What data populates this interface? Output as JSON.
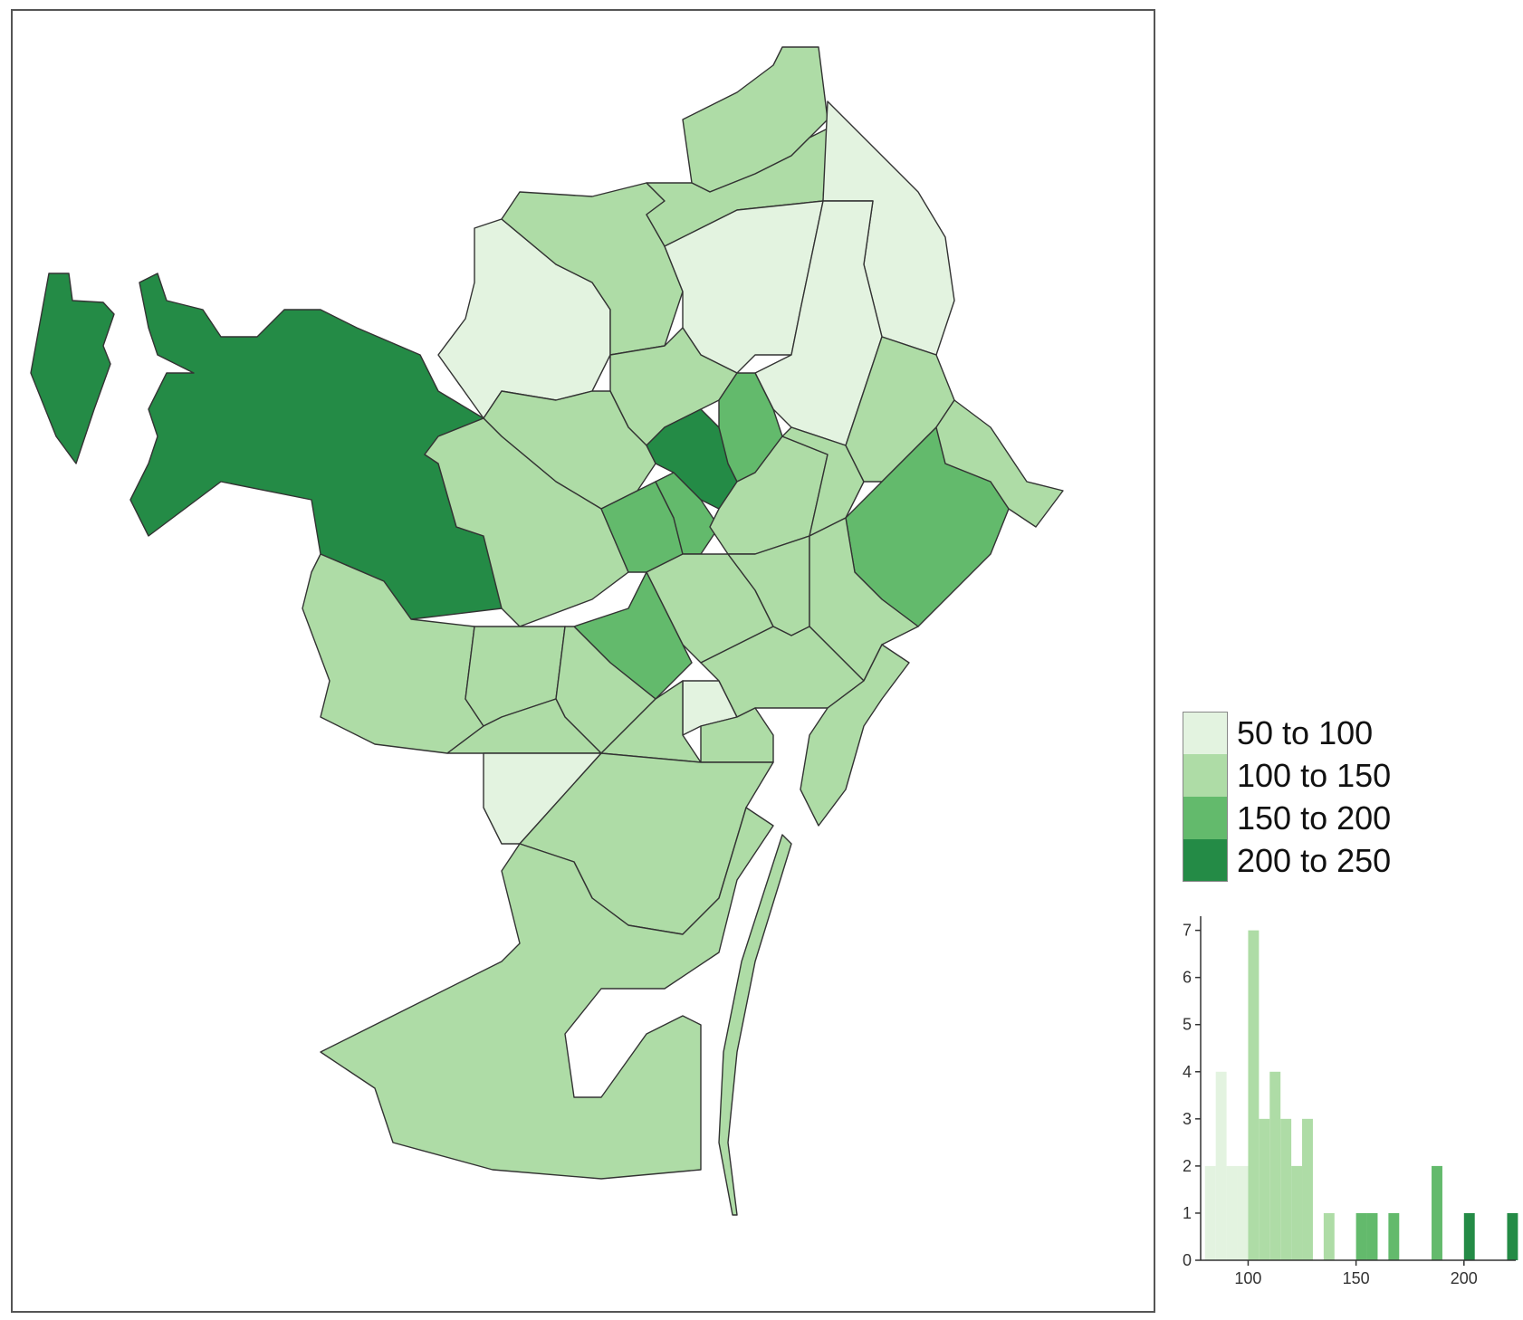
{
  "colors": {
    "bin1": "#e3f3e0",
    "bin2": "#aedca6",
    "bin3": "#63ba6c",
    "bin4": "#248b46",
    "border": "#333333",
    "sea": "#ffffff"
  },
  "legend": {
    "items": [
      {
        "label": "50 to 100",
        "color": "#e3f3e0"
      },
      {
        "label": "100 to 150",
        "color": "#aedca6"
      },
      {
        "label": "150 to 200",
        "color": "#63ba6c"
      },
      {
        "label": "200 to 250",
        "color": "#248b46"
      }
    ]
  },
  "chart_data": {
    "type": "bar",
    "title": "",
    "xlabel": "",
    "ylabel": "",
    "xlim": [
      78,
      224
    ],
    "ylim": [
      0,
      7.3
    ],
    "x_ticks": [
      "100",
      "150",
      "200"
    ],
    "y_ticks": [
      "0",
      "1",
      "2",
      "3",
      "4",
      "5",
      "6",
      "7"
    ],
    "bin_width": 5,
    "bins": [
      {
        "x0": 80,
        "count": 2
      },
      {
        "x0": 85,
        "count": 4
      },
      {
        "x0": 90,
        "count": 2
      },
      {
        "x0": 95,
        "count": 2
      },
      {
        "x0": 100,
        "count": 7
      },
      {
        "x0": 105,
        "count": 3
      },
      {
        "x0": 110,
        "count": 4
      },
      {
        "x0": 115,
        "count": 3
      },
      {
        "x0": 120,
        "count": 2
      },
      {
        "x0": 125,
        "count": 3
      },
      {
        "x0": 135,
        "count": 1
      },
      {
        "x0": 150,
        "count": 1
      },
      {
        "x0": 155,
        "count": 1
      },
      {
        "x0": 165,
        "count": 1
      },
      {
        "x0": 185,
        "count": 2
      },
      {
        "x0": 200,
        "count": 1
      },
      {
        "x0": 220,
        "count": 1
      }
    ]
  }
}
